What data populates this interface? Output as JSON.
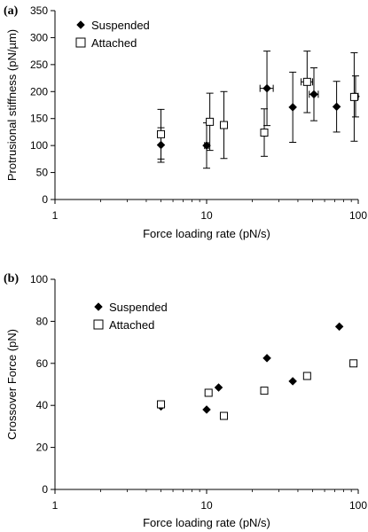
{
  "chart_data": [
    {
      "panel_label": "(a)",
      "type": "scatter",
      "xlabel": "Force loading rate (pN/s)",
      "ylabel": "Protrusional stiffness (pN/µm)",
      "xscale": "log",
      "xlim": [
        1,
        100
      ],
      "ylim": [
        0,
        350
      ],
      "xticks": [
        "1",
        "10",
        "100"
      ],
      "yticks": [
        "0",
        "50",
        "100",
        "150",
        "200",
        "250",
        "300",
        "350"
      ],
      "grid": false,
      "legend_position": "top-left",
      "series": [
        {
          "name": "Suspended",
          "marker": "diamond",
          "points": [
            {
              "x": 5,
              "y": 101,
              "yerr": 32,
              "xerr": 0
            },
            {
              "x": 10,
              "y": 100,
              "yerr": 42,
              "xerr": 0.3
            },
            {
              "x": 25,
              "y": 206,
              "yerr": 69,
              "xerr": 2.5
            },
            {
              "x": 37,
              "y": 171,
              "yerr": 65,
              "xerr": 0
            },
            {
              "x": 51,
              "y": 195,
              "yerr": 49,
              "xerr": 3.5
            },
            {
              "x": 72,
              "y": 172,
              "yerr": 47,
              "xerr": 0
            },
            {
              "x": 96,
              "y": 191,
              "yerr": 38,
              "xerr": 4
            }
          ]
        },
        {
          "name": "Attached",
          "marker": "square",
          "points": [
            {
              "x": 5,
              "y": 121,
              "yerr": 46,
              "xerr": 0
            },
            {
              "x": 10.5,
              "y": 144,
              "yerr": 53,
              "xerr": 0.5
            },
            {
              "x": 13,
              "y": 138,
              "yerr": 62,
              "xerr": 0
            },
            {
              "x": 24,
              "y": 124,
              "yerr": 44,
              "xerr": 0
            },
            {
              "x": 46,
              "y": 218,
              "yerr": 57,
              "xerr": 4
            },
            {
              "x": 94,
              "y": 190,
              "yerr": 82,
              "xerr": 3
            }
          ]
        }
      ]
    },
    {
      "panel_label": "(b)",
      "type": "scatter",
      "xlabel": "Force loading rate (pN/s)",
      "ylabel": "Crossover Force (pN)",
      "xscale": "log",
      "xlim": [
        1,
        100
      ],
      "ylim": [
        0,
        100
      ],
      "xticks": [
        "1",
        "10",
        "100"
      ],
      "yticks": [
        "0",
        "20",
        "40",
        "60",
        "80",
        "100"
      ],
      "grid": false,
      "legend_position": "top-left",
      "series": [
        {
          "name": "Suspended",
          "marker": "diamond",
          "points": [
            {
              "x": 5,
              "y": 39.5
            },
            {
              "x": 10,
              "y": 38
            },
            {
              "x": 12,
              "y": 48.5
            },
            {
              "x": 25,
              "y": 62.5
            },
            {
              "x": 37,
              "y": 51.5
            },
            {
              "x": 75,
              "y": 77.5
            }
          ]
        },
        {
          "name": "Attached",
          "marker": "square",
          "points": [
            {
              "x": 5,
              "y": 40.5
            },
            {
              "x": 10.3,
              "y": 46
            },
            {
              "x": 13,
              "y": 35
            },
            {
              "x": 24,
              "y": 47
            },
            {
              "x": 46,
              "y": 54
            },
            {
              "x": 93,
              "y": 60
            }
          ]
        }
      ]
    }
  ]
}
